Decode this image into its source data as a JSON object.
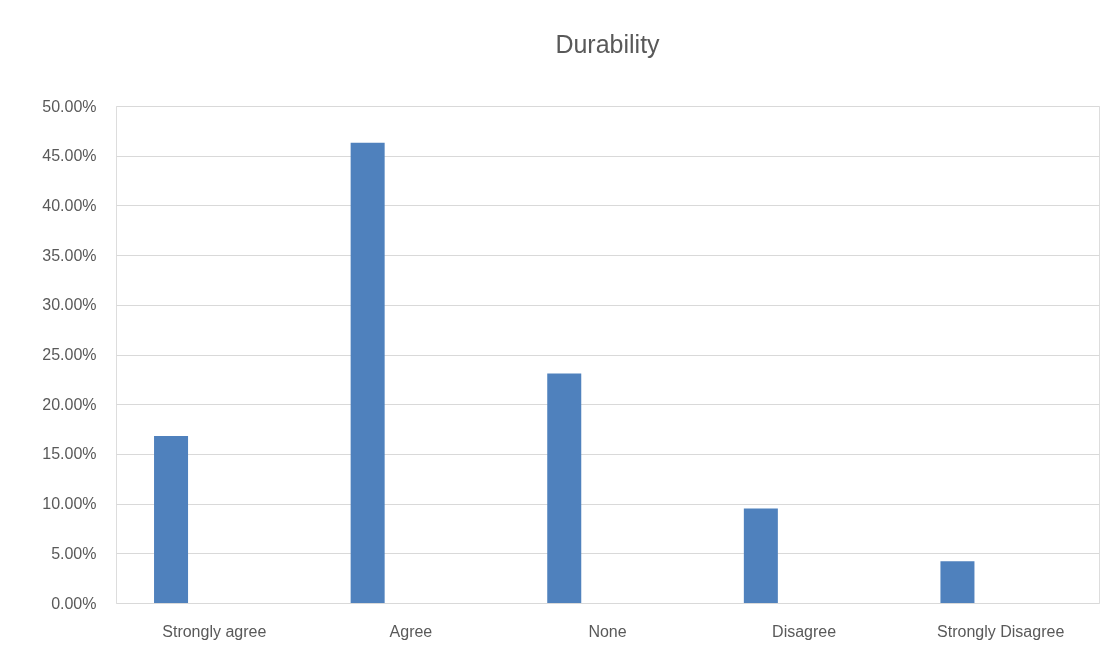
{
  "chart_data": {
    "type": "bar",
    "title": "Durability",
    "categories": [
      "Strongly agree",
      "Agree",
      "None",
      "Disagree",
      "Strongly Disagree"
    ],
    "values": [
      16.8,
      46.3,
      23.1,
      9.5,
      4.2
    ],
    "color": "#4f81bd",
    "ylim": [
      0,
      50
    ],
    "yticks": [
      {
        "value": 0,
        "label": "0.00%"
      },
      {
        "value": 5,
        "label": "5.00%"
      },
      {
        "value": 10,
        "label": "10.00%"
      },
      {
        "value": 15,
        "label": "15.00%"
      },
      {
        "value": 20,
        "label": "20.00%"
      },
      {
        "value": 25,
        "label": "25.00%"
      },
      {
        "value": 30,
        "label": "30.00%"
      },
      {
        "value": 35,
        "label": "35.00%"
      },
      {
        "value": 40,
        "label": "40.00%"
      },
      {
        "value": 45,
        "label": "45.00%"
      },
      {
        "value": 50,
        "label": "50.00%"
      }
    ],
    "grid": "y"
  }
}
